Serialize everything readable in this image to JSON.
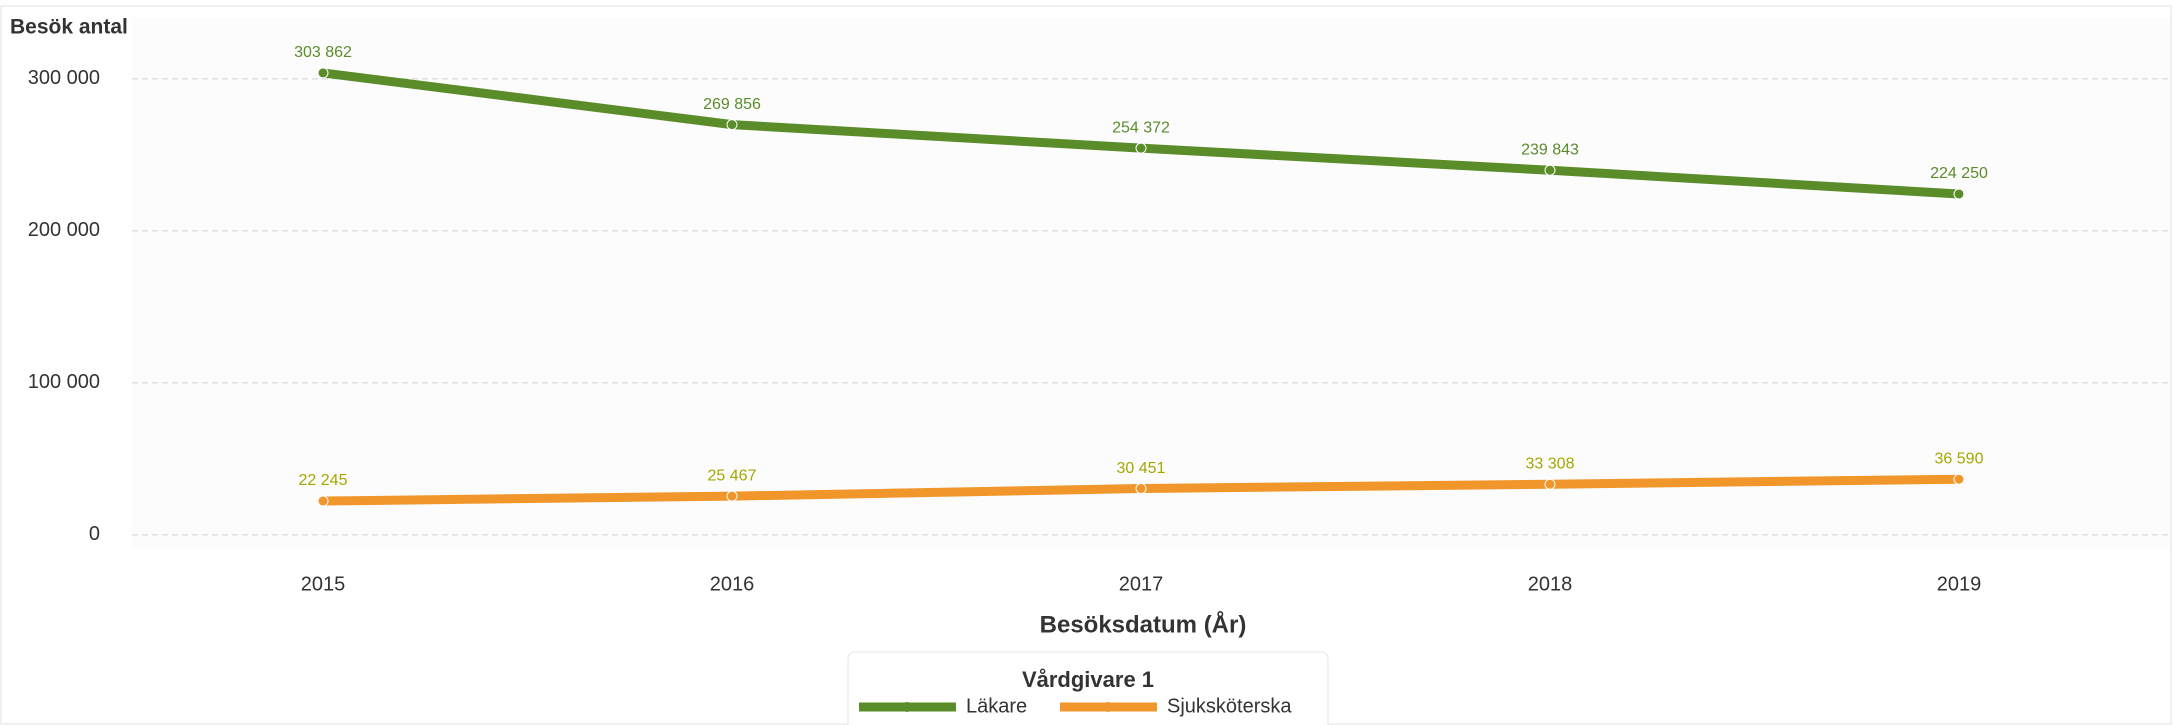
{
  "chart_data": {
    "type": "line",
    "y_label": "Besök antal",
    "x_label": "Besöksdatum (År)",
    "categories": [
      "2015",
      "2016",
      "2017",
      "2018",
      "2019"
    ],
    "series": [
      {
        "name": "Läkare",
        "color": "#5b8c2a",
        "values": [
          303862,
          269856,
          254372,
          239843,
          224250
        ],
        "value_labels": [
          "303 862",
          "269 856",
          "254 372",
          "239 843",
          "224 250"
        ]
      },
      {
        "name": "Sjuksköterska",
        "color": "#f0962a",
        "values": [
          22245,
          25467,
          30451,
          33308,
          36590
        ],
        "value_labels": [
          "22 245",
          "25 467",
          "30 451",
          "33 308",
          "36 590"
        ]
      }
    ],
    "ylim": [
      -8000,
      340000
    ],
    "yticks": [
      0,
      {
        "value": 100000,
        "label": "100 000"
      },
      {
        "value": 200000,
        "label": "200 000"
      },
      {
        "value": 300000,
        "label": "300 000"
      }
    ],
    "grid": true,
    "legend": {
      "title": "Vårdgivare 1",
      "position": "bottom"
    }
  }
}
